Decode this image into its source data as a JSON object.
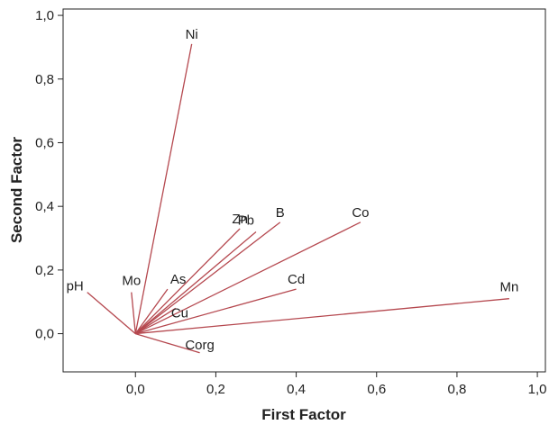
{
  "chart_data": {
    "type": "line",
    "xlabel": "First Factor",
    "ylabel": "Second Factor",
    "xlim": [
      -0.18,
      1.02
    ],
    "ylim": [
      -0.12,
      1.02
    ],
    "xticks": [
      0.0,
      0.2,
      0.4,
      0.6,
      0.8,
      1.0
    ],
    "xtick_labels": [
      "0,0",
      "0,2",
      "0,4",
      "0,6",
      "0,8",
      "1,0"
    ],
    "yticks": [
      0.0,
      0.2,
      0.4,
      0.6,
      0.8,
      1.0
    ],
    "ytick_labels": [
      "0,0",
      "0,2",
      "0,4",
      "0,6",
      "0,8",
      "1,0"
    ],
    "grid": false,
    "line_color": "#b5484f",
    "variables": [
      {
        "name": "Ni",
        "x": 0.14,
        "y": 0.91
      },
      {
        "name": "Zn",
        "x": 0.26,
        "y": 0.33
      },
      {
        "name": "Pb",
        "x": 0.3,
        "y": 0.32
      },
      {
        "name": "B",
        "x": 0.36,
        "y": 0.35
      },
      {
        "name": "Co",
        "x": 0.56,
        "y": 0.35
      },
      {
        "name": "Cd",
        "x": 0.4,
        "y": 0.14
      },
      {
        "name": "Mn",
        "x": 0.93,
        "y": 0.11
      },
      {
        "name": "As",
        "x": 0.08,
        "y": 0.14
      },
      {
        "name": "Cu",
        "x": 0.1,
        "y": 0.08
      },
      {
        "name": "pH",
        "x": -0.12,
        "y": 0.13
      },
      {
        "name": "Mo",
        "x": -0.01,
        "y": 0.13
      },
      {
        "name": "Corg",
        "x": 0.16,
        "y": -0.06
      }
    ]
  }
}
